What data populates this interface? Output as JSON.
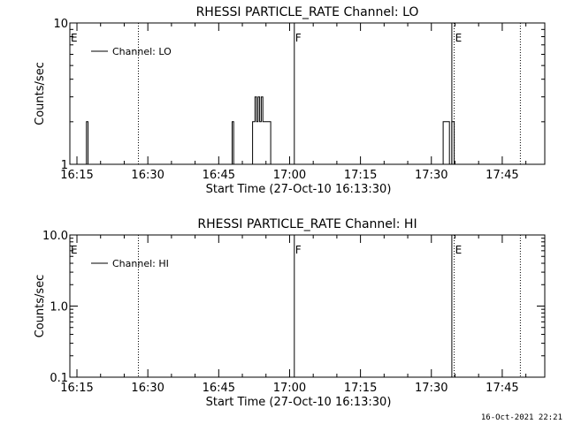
{
  "footer_timestamp": "16-Oct-2021 22:21",
  "chart_data": [
    {
      "type": "line",
      "title": "RHESSI PARTICLE_RATE Channel: LO",
      "xlabel": "Start Time (27-Oct-10 16:13:30)",
      "ylabel": "Counts/sec",
      "yscale": "log",
      "ylim": [
        1,
        10
      ],
      "ytick_labels": [
        "1",
        "10"
      ],
      "xlim": [
        "16:13:30",
        "17:54:00"
      ],
      "xtick_labels": [
        "16:15",
        "16:30",
        "16:45",
        "17:00",
        "17:15",
        "17:30",
        "17:45"
      ],
      "legend": {
        "position": "top-left",
        "entries": [
          "Channel: LO"
        ]
      },
      "series": [
        {
          "name": "Channel: LO",
          "x": [
            "16:13:30",
            "16:17:00",
            "16:17:00",
            "16:17:20",
            "16:17:20",
            "16:17:40",
            "16:17:40",
            "16:47:50",
            "16:47:50",
            "16:48:10",
            "16:48:10",
            "16:52:10",
            "16:52:10",
            "16:52:40",
            "16:52:40",
            "16:53:00",
            "16:53:00",
            "16:53:20",
            "16:53:20",
            "16:53:40",
            "16:53:40",
            "16:54:00",
            "16:54:00",
            "16:54:20",
            "16:54:20",
            "16:56:00",
            "16:56:00",
            "16:56:40",
            "16:56:40",
            "17:32:30",
            "17:32:30",
            "17:33:50",
            "17:33:50",
            "17:34:20",
            "17:34:20",
            "17:34:50",
            "17:34:50",
            "17:35:20",
            "17:35:20",
            "17:54:00"
          ],
          "y": [
            1,
            1,
            2,
            2,
            1,
            1,
            1,
            1,
            2,
            2,
            1,
            1,
            2,
            2,
            3,
            3,
            2,
            2,
            3,
            3,
            2,
            2,
            3,
            3,
            2,
            2,
            1,
            1,
            1,
            1,
            2,
            2,
            1,
            1,
            2,
            2,
            1,
            1,
            1,
            1
          ]
        }
      ],
      "annotations": [
        {
          "time": "16:13:30",
          "label": "E",
          "style": "dotted"
        },
        {
          "time": "16:28:00",
          "label": "",
          "style": "dotted"
        },
        {
          "time": "17:01:00",
          "label": "F",
          "style": "solid"
        },
        {
          "time": "17:34:20",
          "label": "",
          "style": "solid"
        },
        {
          "time": "17:34:50",
          "label": "E",
          "style": "dotted"
        },
        {
          "time": "17:48:50",
          "label": "",
          "style": "dotted"
        }
      ]
    },
    {
      "type": "line",
      "title": "RHESSI PARTICLE_RATE Channel: HI",
      "xlabel": "Start Time (27-Oct-10 16:13:30)",
      "ylabel": "Counts/sec",
      "yscale": "log",
      "ylim": [
        0.1,
        10
      ],
      "ytick_labels": [
        "0.1",
        "1.0",
        "10.0"
      ],
      "xlim": [
        "16:13:30",
        "17:54:00"
      ],
      "xtick_labels": [
        "16:15",
        "16:30",
        "16:45",
        "17:00",
        "17:15",
        "17:30",
        "17:45"
      ],
      "legend": {
        "position": "top-left",
        "entries": [
          "Channel: HI"
        ]
      },
      "series": [
        {
          "name": "Channel: HI",
          "x": [],
          "y": []
        }
      ],
      "annotations": [
        {
          "time": "16:13:30",
          "label": "E",
          "style": "dotted"
        },
        {
          "time": "16:28:00",
          "label": "",
          "style": "dotted"
        },
        {
          "time": "17:01:00",
          "label": "F",
          "style": "solid"
        },
        {
          "time": "17:34:20",
          "label": "",
          "style": "solid"
        },
        {
          "time": "17:34:50",
          "label": "E",
          "style": "dotted"
        },
        {
          "time": "17:48:50",
          "label": "",
          "style": "dotted"
        }
      ]
    }
  ]
}
